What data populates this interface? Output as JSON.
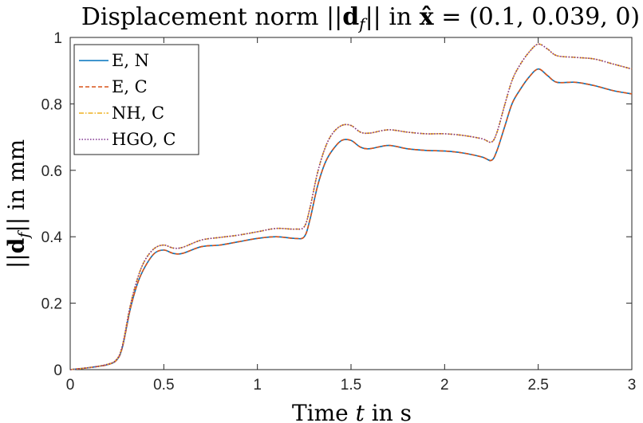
{
  "chart_data": {
    "type": "line",
    "title": "Displacement norm ||d_f|| in x̂ = (0.1, 0.039, 0)",
    "xlabel": "Time t in s",
    "ylabel": "||d_f|| in mm",
    "xlim": [
      0,
      3
    ],
    "ylim": [
      0,
      1
    ],
    "xticks": [
      "0",
      "0.5",
      "1",
      "1.5",
      "2",
      "2.5",
      "3"
    ],
    "yticks": [
      "0",
      "0.2",
      "0.4",
      "0.6",
      "0.8",
      "1"
    ],
    "grid": false,
    "legend_position": "top-left",
    "x": [
      0,
      0.1,
      0.2,
      0.25,
      0.28,
      0.32,
      0.36,
      0.4,
      0.45,
      0.5,
      0.55,
      0.6,
      0.7,
      0.8,
      0.9,
      1.0,
      1.1,
      1.2,
      1.25,
      1.28,
      1.32,
      1.36,
      1.4,
      1.45,
      1.5,
      1.55,
      1.6,
      1.7,
      1.8,
      1.9,
      2.0,
      2.1,
      2.2,
      2.25,
      2.28,
      2.32,
      2.36,
      2.4,
      2.45,
      2.5,
      2.55,
      2.6,
      2.7,
      2.8,
      2.9,
      3.0
    ],
    "series": [
      {
        "name": "E, N",
        "color": "#0072BD",
        "dash": "solid",
        "values": [
          0,
          0.006,
          0.015,
          0.03,
          0.07,
          0.18,
          0.26,
          0.31,
          0.35,
          0.36,
          0.35,
          0.35,
          0.37,
          0.375,
          0.385,
          0.395,
          0.4,
          0.395,
          0.4,
          0.45,
          0.55,
          0.62,
          0.66,
          0.69,
          0.69,
          0.67,
          0.665,
          0.675,
          0.665,
          0.66,
          0.658,
          0.652,
          0.64,
          0.63,
          0.66,
          0.73,
          0.8,
          0.84,
          0.88,
          0.905,
          0.885,
          0.865,
          0.865,
          0.855,
          0.84,
          0.83
        ]
      },
      {
        "name": "E, C",
        "color": "#D95319",
        "dash": "dashed",
        "values": [
          0,
          0.006,
          0.015,
          0.03,
          0.07,
          0.18,
          0.26,
          0.31,
          0.35,
          0.36,
          0.35,
          0.35,
          0.37,
          0.375,
          0.385,
          0.395,
          0.4,
          0.395,
          0.4,
          0.45,
          0.55,
          0.62,
          0.66,
          0.69,
          0.69,
          0.67,
          0.665,
          0.675,
          0.665,
          0.66,
          0.658,
          0.652,
          0.64,
          0.63,
          0.66,
          0.73,
          0.8,
          0.84,
          0.88,
          0.905,
          0.885,
          0.865,
          0.865,
          0.855,
          0.84,
          0.83
        ]
      },
      {
        "name": "NH, C",
        "color": "#EDB120",
        "dash": "dashdot",
        "values": [
          0,
          0.006,
          0.016,
          0.032,
          0.075,
          0.19,
          0.275,
          0.33,
          0.365,
          0.375,
          0.366,
          0.368,
          0.39,
          0.398,
          0.405,
          0.415,
          0.425,
          0.423,
          0.43,
          0.485,
          0.59,
          0.665,
          0.71,
          0.735,
          0.735,
          0.715,
          0.712,
          0.722,
          0.715,
          0.71,
          0.71,
          0.705,
          0.695,
          0.685,
          0.715,
          0.795,
          0.87,
          0.915,
          0.955,
          0.98,
          0.965,
          0.945,
          0.94,
          0.935,
          0.92,
          0.905
        ]
      },
      {
        "name": "HGO, C",
        "color": "#7E2F8E",
        "dash": "dotted",
        "values": [
          0,
          0.006,
          0.016,
          0.032,
          0.075,
          0.19,
          0.275,
          0.33,
          0.365,
          0.375,
          0.366,
          0.368,
          0.39,
          0.398,
          0.405,
          0.415,
          0.425,
          0.423,
          0.43,
          0.485,
          0.59,
          0.665,
          0.71,
          0.735,
          0.735,
          0.715,
          0.712,
          0.722,
          0.715,
          0.71,
          0.71,
          0.705,
          0.695,
          0.685,
          0.715,
          0.795,
          0.87,
          0.915,
          0.955,
          0.98,
          0.965,
          0.945,
          0.94,
          0.935,
          0.92,
          0.905
        ]
      }
    ]
  }
}
